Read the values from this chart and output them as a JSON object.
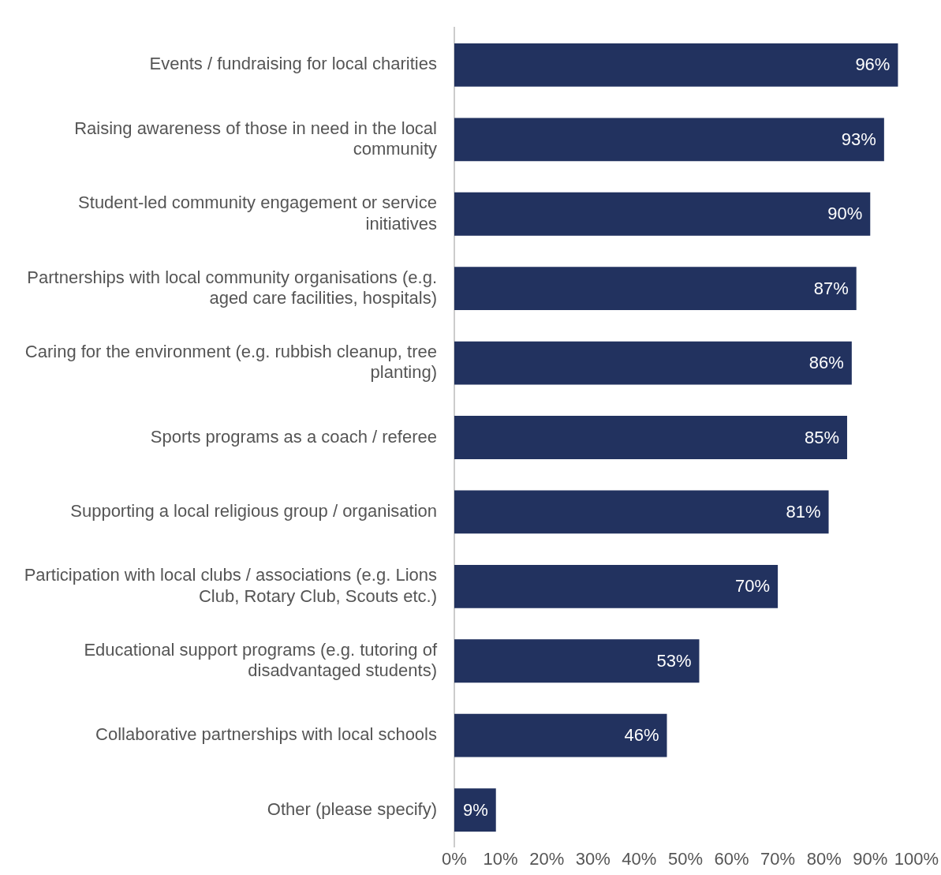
{
  "chart_data": {
    "type": "bar",
    "orientation": "horizontal",
    "categories": [
      "Events / fundraising for local charities",
      "Raising awareness of those in need in the local community",
      "Student-led community engagement or service initiatives",
      "Partnerships with local community organisations (e.g. aged care facilities, hospitals)",
      "Caring for the environment (e.g. rubbish cleanup, tree planting)",
      "Sports programs as a coach / referee",
      "Supporting a local religious group / organisation",
      "Participation with local clubs / associations (e.g. Lions Club, Rotary Club, Scouts etc.)",
      "Educational support programs (e.g. tutoring of disadvantaged students)",
      "Collaborative partnerships with local schools",
      "Other (please specify)"
    ],
    "values": [
      96,
      93,
      90,
      87,
      86,
      85,
      81,
      70,
      53,
      46,
      9
    ],
    "value_labels": [
      "96%",
      "93%",
      "90%",
      "87%",
      "86%",
      "85%",
      "81%",
      "70%",
      "53%",
      "46%",
      "9%"
    ],
    "color": "#22325f",
    "xlim": [
      0,
      100
    ],
    "xticks": [
      {
        "value": 0,
        "label": "0%"
      },
      {
        "value": 10,
        "label": "10%"
      },
      {
        "value": 20,
        "label": "20%"
      },
      {
        "value": 30,
        "label": "30%"
      },
      {
        "value": 40,
        "label": "40%"
      },
      {
        "value": 50,
        "label": "50%"
      },
      {
        "value": 60,
        "label": "60%"
      },
      {
        "value": 70,
        "label": "70%"
      },
      {
        "value": 80,
        "label": "80%"
      },
      {
        "value": 90,
        "label": "90%"
      },
      {
        "value": 100,
        "label": "100%"
      }
    ],
    "legend": false
  }
}
